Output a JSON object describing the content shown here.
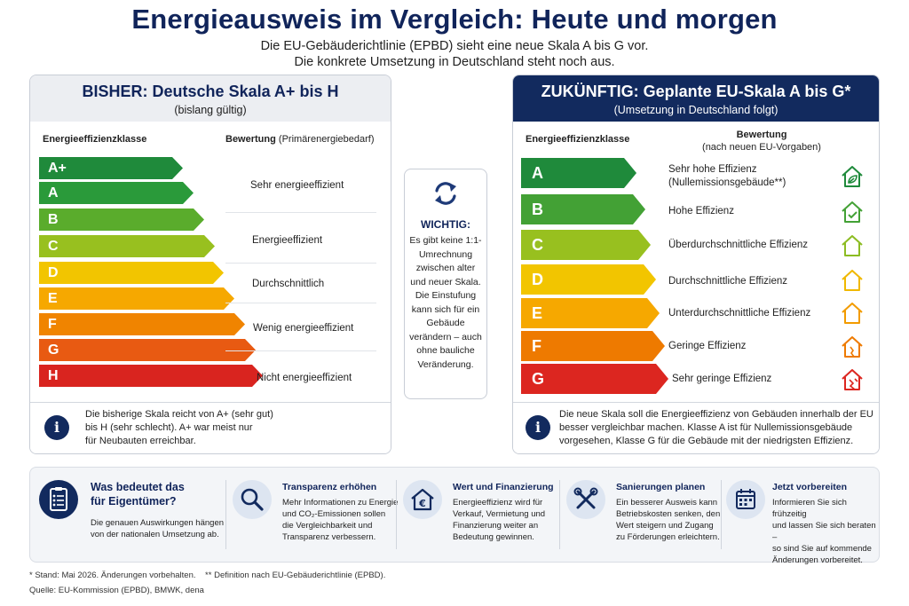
{
  "header": {
    "title": "Energieausweis im Vergleich: Heute und morgen",
    "subtitle_line1": "Die EU-Gebäuderichtlinie (EPBD) sieht eine neue Skala A bis G vor.",
    "subtitle_line2": "Die konkrete Umsetzung in Deutschland steht noch aus."
  },
  "left": {
    "title": "BISHER: Deutsche Skala A+ bis H",
    "subtitle": "(bislang gültig)",
    "col_class": "Energieeffizienzklasse",
    "col_rating": "Bewertung",
    "col_rating_sub": "(Primärenergiebedarf)",
    "classes": [
      {
        "label": "A+",
        "color": "#1f8a3b"
      },
      {
        "label": "A",
        "color": "#2a9a3a"
      },
      {
        "label": "B",
        "color": "#5aac2c"
      },
      {
        "label": "C",
        "color": "#98c01f"
      },
      {
        "label": "D",
        "color": "#f2c500"
      },
      {
        "label": "E",
        "color": "#f6a800"
      },
      {
        "label": "F",
        "color": "#f08400"
      },
      {
        "label": "G",
        "color": "#e85a12"
      },
      {
        "label": "H",
        "color": "#d9241f"
      }
    ],
    "ratings": [
      "Sehr energieeffizient",
      "Energieeffizient",
      "Durchschnittlich",
      "Wenig energieeffizient",
      "Nicht energieeffizient"
    ],
    "info_line1": "Die bisherige Skala reicht von A+ (sehr gut)",
    "info_line2": "bis H (sehr schlecht). A+ war meist nur",
    "info_line3": "für Neubauten erreichbar.",
    "info_symbol": "i"
  },
  "center": {
    "title": "WICHTIG:",
    "text": "Es gibt keine 1:1-Umrechnung zwischen alter und neuer Skala. Die Einstufung kann sich für ein Gebäude verändern – auch ohne bauliche Veränderung.",
    "icon": "refresh-icon"
  },
  "right": {
    "title": "ZUKÜNFTIG: Geplante EU-Skala A bis G*",
    "subtitle": "(Umsetzung in Deutschland folgt)",
    "col_class": "Energieeffizienzklasse",
    "col_rating": "Bewertung",
    "col_rating_sub": "(nach neuen EU-Vorgaben)",
    "classes": [
      {
        "label": "A",
        "color": "#1f8a3b",
        "rating": "Sehr hohe Effizienz",
        "rating2": "(Nullemissionsgebäude**)",
        "icon_color": "#1f8a3b"
      },
      {
        "label": "B",
        "color": "#43a135",
        "rating": "Hohe Effizienz",
        "rating2": "",
        "icon_color": "#43a135"
      },
      {
        "label": "C",
        "color": "#98c01f",
        "rating": "Überdurchschnittliche Effizienz",
        "rating2": "",
        "icon_color": "#8cbc22"
      },
      {
        "label": "D",
        "color": "#f2c500",
        "rating": "Durchschnittliche Effizienz",
        "rating2": "",
        "icon_color": "#f0b800"
      },
      {
        "label": "E",
        "color": "#f6a800",
        "rating": "Unterdurchschnittliche Effizienz",
        "rating2": "",
        "icon_color": "#f29b00"
      },
      {
        "label": "F",
        "color": "#ee7a00",
        "rating": "Geringe Effizienz",
        "rating2": "",
        "icon_color": "#ee7a00"
      },
      {
        "label": "G",
        "color": "#dc2620",
        "rating": "Sehr geringe Effizienz",
        "rating2": "",
        "icon_color": "#dc2620"
      }
    ],
    "info_line1": "Die neue Skala soll die Energieeffizienz von Gebäuden innerhalb der EU",
    "info_line2": "besser vergleichbar machen. Klasse A ist für Nullemissionsgebäude",
    "info_line3": "vorgesehen, Klasse G für die Gebäude mit der niedrigsten Effizienz.",
    "info_symbol": "i"
  },
  "bottom": [
    {
      "icon": "clipboard-icon",
      "title1": "Was bedeutet das",
      "title2": "für Eigentümer?",
      "text": [
        "Die genauen Auswirkungen hängen",
        "von der nationalen Umsetzung ab."
      ]
    },
    {
      "icon": "magnifier-icon",
      "title1": "Transparenz erhöhen",
      "title2": "",
      "text": [
        "Mehr Informationen zu Energie",
        "und CO₂-Emissionen sollen",
        "die Vergleichbarkeit und",
        "Transparenz verbessern."
      ]
    },
    {
      "icon": "euro-house-icon",
      "title1": "Wert und Finanzierung",
      "title2": "",
      "text": [
        "Energieeffizienz wird für",
        "Verkauf, Vermietung und",
        "Finanzierung weiter an",
        "Bedeutung gewinnen."
      ]
    },
    {
      "icon": "tools-icon",
      "title1": "Sanierungen planen",
      "title2": "",
      "text": [
        "Ein besserer Ausweis kann",
        "Betriebskosten senken, den",
        "Wert steigern und Zugang",
        "zu Förderungen erleichtern."
      ]
    },
    {
      "icon": "calendar-icon",
      "title1": "Jetzt vorbereiten",
      "title2": "",
      "text": [
        "Informieren Sie sich frühzeitig",
        "und lassen Sie sich beraten –",
        "so sind Sie auf kommende",
        "Änderungen vorbereitet."
      ]
    }
  ],
  "footer": {
    "note": "* Stand: Mai 2026. Änderungen vorbehalten.    ** Definition nach EU-Gebäuderichtlinie (EPBD).",
    "source": "Quelle: EU-Kommission (EPBD), BMWK, dena"
  },
  "colors": {
    "navy": "#122a5e",
    "title": "#10245a"
  }
}
